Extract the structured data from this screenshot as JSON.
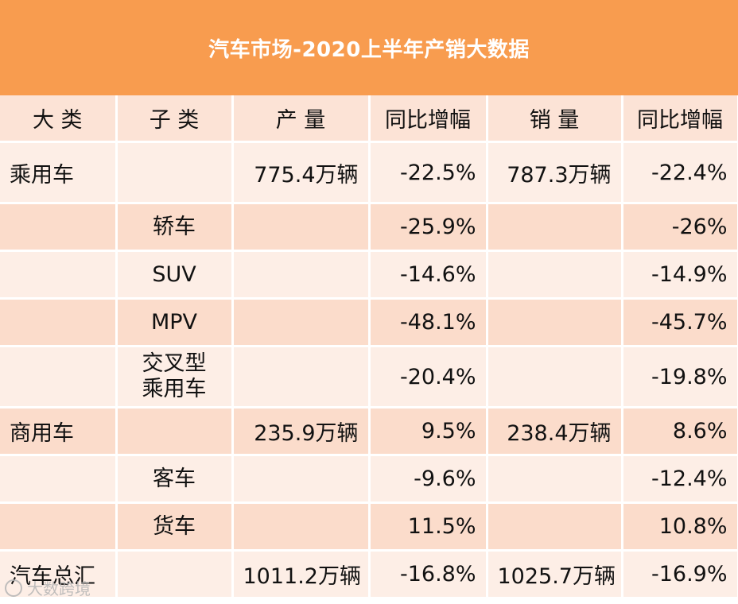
{
  "title": "汽车市场-2020上半年产销大数据",
  "headers": [
    "大 类",
    "子 类",
    "产 量",
    "同比增幅",
    "销 量",
    "同比增幅"
  ],
  "rows": [
    {
      "category": "乘用车",
      "sub": "",
      "production": "775.4万辆",
      "prod_yoy": "-22.5%",
      "sales": "787.3万辆",
      "sales_yoy": "-22.4%"
    },
    {
      "category": "",
      "sub": "轿车",
      "production": "",
      "prod_yoy": "-25.9%",
      "sales": "",
      "sales_yoy": "-26%"
    },
    {
      "category": "",
      "sub": "SUV",
      "production": "",
      "prod_yoy": "-14.6%",
      "sales": "",
      "sales_yoy": "-14.9%"
    },
    {
      "category": "",
      "sub": "MPV",
      "production": "",
      "prod_yoy": "-48.1%",
      "sales": "",
      "sales_yoy": "-45.7%"
    },
    {
      "category": "",
      "sub": "交叉型乘用车",
      "production": "",
      "prod_yoy": "-20.4%",
      "sales": "",
      "sales_yoy": "-19.8%"
    },
    {
      "category": "商用车",
      "sub": "",
      "production": "235.9万辆",
      "prod_yoy": "9.5%",
      "sales": "238.4万辆",
      "sales_yoy": "8.6%"
    },
    {
      "category": "",
      "sub": "客车",
      "production": "",
      "prod_yoy": "-9.6%",
      "sales": "",
      "sales_yoy": "-12.4%"
    },
    {
      "category": "",
      "sub": "货车",
      "production": "",
      "prod_yoy": "11.5%",
      "sales": "",
      "sales_yoy": "10.8%"
    },
    {
      "category": "汽车总汇",
      "sub": "",
      "production": "1011.2万辆",
      "prod_yoy": "-16.8%",
      "sales": "1025.7万辆",
      "sales_yoy": "-16.9%"
    }
  ],
  "watermark": "大数跨境",
  "colors": {
    "title_bg": "#f89c4f",
    "header_bg": "#fce3d6",
    "row_light": "#fdeee6",
    "row_dark": "#fbdccb"
  }
}
